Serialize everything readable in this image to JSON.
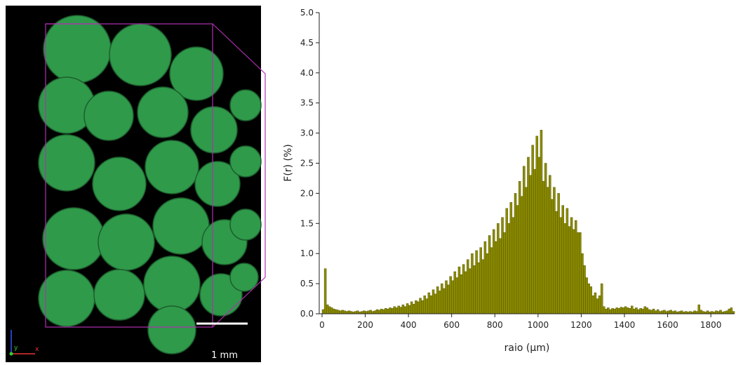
{
  "image": {
    "scale_bar_label": "1 mm",
    "axis_labels": [
      "y",
      "x"
    ]
  },
  "chart_data": {
    "type": "histogram",
    "x_label": "raio (µm)",
    "y_label": "F(r) (%)",
    "color": "#8a8a00",
    "edge_color": "#4d4d00",
    "bins": [
      0,
      10,
      20,
      30,
      40,
      50,
      60,
      70,
      80,
      90,
      100,
      110,
      120,
      130,
      140,
      150,
      160,
      170,
      180,
      190,
      200,
      210,
      220,
      230,
      240,
      250,
      260,
      270,
      280,
      290,
      300,
      310,
      320,
      330,
      340,
      350,
      360,
      370,
      380,
      390,
      400,
      410,
      420,
      430,
      440,
      450,
      460,
      470,
      480,
      490,
      500,
      510,
      520,
      530,
      540,
      550,
      560,
      570,
      580,
      590,
      600,
      610,
      620,
      630,
      640,
      650,
      660,
      670,
      680,
      690,
      700,
      710,
      720,
      730,
      740,
      750,
      760,
      770,
      780,
      790,
      800,
      810,
      820,
      830,
      840,
      850,
      860,
      870,
      880,
      890,
      900,
      910,
      920,
      930,
      940,
      950,
      960,
      970,
      980,
      990,
      1000,
      1010,
      1020,
      1030,
      1040,
      1050,
      1060,
      1070,
      1080,
      1090,
      1100,
      1110,
      1120,
      1130,
      1140,
      1150,
      1160,
      1170,
      1180,
      1190,
      1200,
      1210,
      1220,
      1230,
      1240,
      1250,
      1260,
      1270,
      1280,
      1290,
      1300,
      1310,
      1320,
      1330,
      1340,
      1350,
      1360,
      1370,
      1380,
      1390,
      1400,
      1410,
      1420,
      1430,
      1440,
      1450,
      1460,
      1470,
      1480,
      1490,
      1500,
      1510,
      1520,
      1530,
      1540,
      1550,
      1560,
      1570,
      1580,
      1590,
      1600,
      1610,
      1620,
      1630,
      1640,
      1650,
      1660,
      1670,
      1680,
      1690,
      1700,
      1710,
      1720,
      1730,
      1740,
      1750,
      1760,
      1770,
      1780,
      1790,
      1800,
      1810,
      1820,
      1830,
      1840,
      1850,
      1860,
      1870,
      1880,
      1890,
      1900,
      1910
    ],
    "values": [
      0.07,
      0.75,
      0.15,
      0.12,
      0.1,
      0.08,
      0.07,
      0.06,
      0.05,
      0.06,
      0.05,
      0.04,
      0.05,
      0.04,
      0.03,
      0.04,
      0.05,
      0.03,
      0.04,
      0.05,
      0.04,
      0.05,
      0.06,
      0.04,
      0.05,
      0.07,
      0.06,
      0.08,
      0.07,
      0.09,
      0.08,
      0.1,
      0.09,
      0.12,
      0.1,
      0.13,
      0.11,
      0.15,
      0.12,
      0.17,
      0.14,
      0.2,
      0.16,
      0.22,
      0.2,
      0.26,
      0.22,
      0.3,
      0.25,
      0.35,
      0.3,
      0.4,
      0.33,
      0.45,
      0.38,
      0.5,
      0.42,
      0.55,
      0.48,
      0.62,
      0.55,
      0.7,
      0.6,
      0.78,
      0.65,
      0.82,
      0.7,
      0.9,
      0.75,
      1.0,
      0.8,
      1.05,
      0.85,
      1.1,
      0.9,
      1.2,
      1.0,
      1.3,
      1.1,
      1.4,
      1.2,
      1.5,
      1.25,
      1.6,
      1.35,
      1.75,
      1.5,
      1.85,
      1.6,
      2.0,
      1.8,
      2.2,
      1.95,
      2.45,
      2.1,
      2.6,
      2.3,
      2.8,
      2.4,
      2.95,
      2.6,
      3.05,
      2.2,
      2.5,
      2.1,
      2.3,
      1.9,
      2.1,
      1.7,
      2.0,
      1.6,
      1.8,
      1.5,
      1.75,
      1.45,
      1.6,
      1.4,
      1.55,
      1.35,
      1.35,
      1.0,
      0.8,
      0.6,
      0.5,
      0.45,
      0.3,
      0.35,
      0.25,
      0.3,
      0.5,
      0.12,
      0.08,
      0.1,
      0.07,
      0.09,
      0.08,
      0.1,
      0.09,
      0.11,
      0.1,
      0.12,
      0.1,
      0.09,
      0.13,
      0.08,
      0.1,
      0.07,
      0.09,
      0.08,
      0.12,
      0.1,
      0.07,
      0.06,
      0.08,
      0.05,
      0.07,
      0.04,
      0.05,
      0.06,
      0.04,
      0.05,
      0.06,
      0.04,
      0.05,
      0.03,
      0.04,
      0.05,
      0.03,
      0.04,
      0.03,
      0.04,
      0.03,
      0.05,
      0.04,
      0.15,
      0.06,
      0.04,
      0.03,
      0.05,
      0.03,
      0.04,
      0.03,
      0.05,
      0.04,
      0.06,
      0.03,
      0.04,
      0.05,
      0.08,
      0.1,
      0.04
    ],
    "xlim": [
      -13,
      1910
    ],
    "xticks": [
      0,
      200,
      400,
      600,
      800,
      1000,
      1200,
      1400,
      1600,
      1800
    ],
    "ylim": [
      0,
      5
    ],
    "yticks": [
      {
        "value": 0,
        "label": "0.0"
      },
      0.5,
      {
        "value": 1,
        "label": "1.0"
      },
      1.5,
      {
        "value": 2,
        "label": "2.0"
      },
      2.5,
      {
        "value": 3,
        "label": "3.0"
      },
      3.5,
      {
        "value": 4,
        "label": "4.0"
      },
      4.5,
      {
        "value": 5,
        "label": "5.0"
      }
    ]
  }
}
